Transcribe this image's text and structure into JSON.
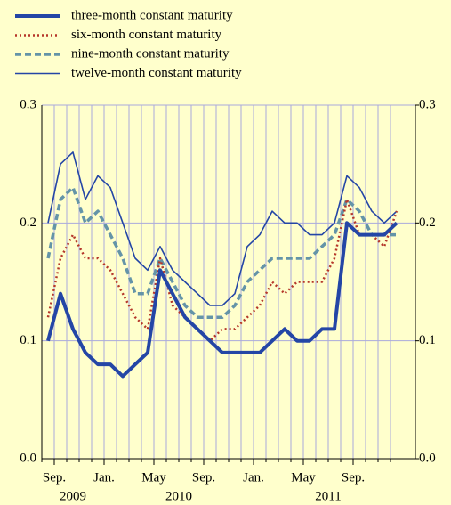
{
  "chart_data": {
    "type": "line",
    "x": [
      "2009-08",
      "2009-09",
      "2009-10",
      "2009-11",
      "2009-12",
      "2010-01",
      "2010-02",
      "2010-03",
      "2010-04",
      "2010-05",
      "2010-06",
      "2010-07",
      "2010-08",
      "2010-09",
      "2010-10",
      "2010-11",
      "2010-12",
      "2011-01",
      "2011-02",
      "2011-03",
      "2011-04",
      "2011-05",
      "2011-06",
      "2011-07",
      "2011-08",
      "2011-09",
      "2011-10",
      "2011-11",
      "2011-12"
    ],
    "xlim": [
      "2009-08",
      "2012-02"
    ],
    "xticks": [
      {
        "value": "2009-09",
        "label": "Sep."
      },
      {
        "value": "2010-01",
        "label": "Jan."
      },
      {
        "value": "2010-05",
        "label": "May"
      },
      {
        "value": "2010-09",
        "label": "Sep."
      },
      {
        "value": "2011-01",
        "label": "Jan."
      },
      {
        "value": "2011-05",
        "label": "May"
      },
      {
        "value": "2011-09",
        "label": "Sep."
      }
    ],
    "year_labels": [
      "2009",
      "2010",
      "2011"
    ],
    "ylim": [
      0,
      0.3
    ],
    "yticks": [
      {
        "value": 0,
        "label": "0.0"
      },
      0.1,
      0.2,
      0.3
    ],
    "y2lim": [
      0,
      0.3
    ],
    "y2ticks": [
      {
        "value": 0,
        "label": "0.0"
      },
      0.1,
      0.2,
      0.3
    ],
    "grid": true,
    "series": [
      {
        "name": "three-month constant maturity",
        "color": "#2446a6",
        "style": "solid",
        "width": 4,
        "values": [
          0.1,
          0.14,
          0.11,
          0.09,
          0.08,
          0.08,
          0.07,
          0.08,
          0.09,
          0.16,
          0.14,
          0.12,
          0.11,
          0.1,
          0.09,
          0.09,
          0.09,
          0.09,
          0.1,
          0.11,
          0.1,
          0.1,
          0.11,
          0.11,
          0.2,
          0.19,
          0.19,
          0.19,
          0.2
        ]
      },
      {
        "name": "six-month constant maturity",
        "color": "#b5372a",
        "style": "dotted",
        "width": 2.5,
        "values": [
          0.12,
          0.17,
          0.19,
          0.17,
          0.17,
          0.16,
          0.14,
          0.12,
          0.11,
          0.17,
          0.13,
          0.12,
          0.11,
          0.1,
          0.11,
          0.11,
          0.12,
          0.13,
          0.15,
          0.14,
          0.15,
          0.15,
          0.15,
          0.17,
          0.22,
          0.19,
          0.19,
          0.18,
          0.21
        ]
      },
      {
        "name": "nine-month constant maturity",
        "color": "#6494a8",
        "style": "dashed",
        "width": 3.5,
        "values": [
          0.17,
          0.22,
          0.23,
          0.2,
          0.21,
          0.19,
          0.17,
          0.14,
          0.14,
          0.17,
          0.15,
          0.13,
          0.12,
          0.12,
          0.12,
          0.13,
          0.15,
          0.16,
          0.17,
          0.17,
          0.17,
          0.17,
          0.18,
          0.19,
          0.22,
          0.21,
          0.19,
          0.19,
          0.19
        ]
      },
      {
        "name": "twelve-month constant maturity",
        "color": "#2446a6",
        "style": "solid",
        "width": 1.6,
        "values": [
          0.2,
          0.25,
          0.26,
          0.22,
          0.24,
          0.23,
          0.2,
          0.17,
          0.16,
          0.18,
          0.16,
          0.15,
          0.14,
          0.13,
          0.13,
          0.14,
          0.18,
          0.19,
          0.21,
          0.2,
          0.2,
          0.19,
          0.19,
          0.2,
          0.24,
          0.23,
          0.21,
          0.2,
          0.21
        ]
      }
    ]
  }
}
